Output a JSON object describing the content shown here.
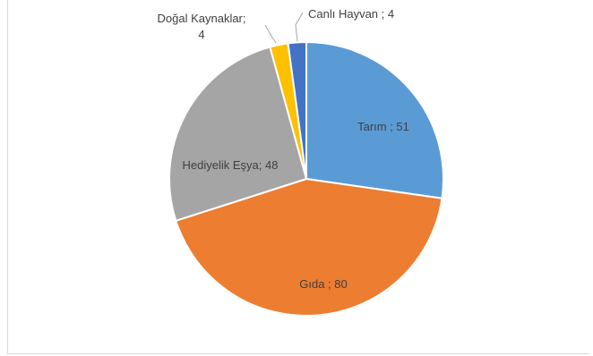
{
  "chart_data": {
    "type": "pie",
    "title": "",
    "categories": [
      "Tarım",
      "Gıda",
      "Hediyelik Eşya",
      "Doğal Kaynaklar",
      "Canlı Hayvan"
    ],
    "values": [
      51,
      80,
      48,
      4,
      4
    ],
    "labels": [
      "Tarım ; 51",
      "Gıda ; 80",
      "Hediyelik Eşya; 48",
      "Doğal Kaynaklar;",
      "4",
      "Canlı Hayvan ; 4"
    ],
    "colors": {
      "tarim": "#5b9bd5",
      "gida": "#ed7d31",
      "hediyelik": "#a5a5a5",
      "dogal": "#ffc000",
      "canli": "#4472c4"
    },
    "start_angle_deg": 0,
    "direction": "clockwise",
    "legend": "none"
  }
}
